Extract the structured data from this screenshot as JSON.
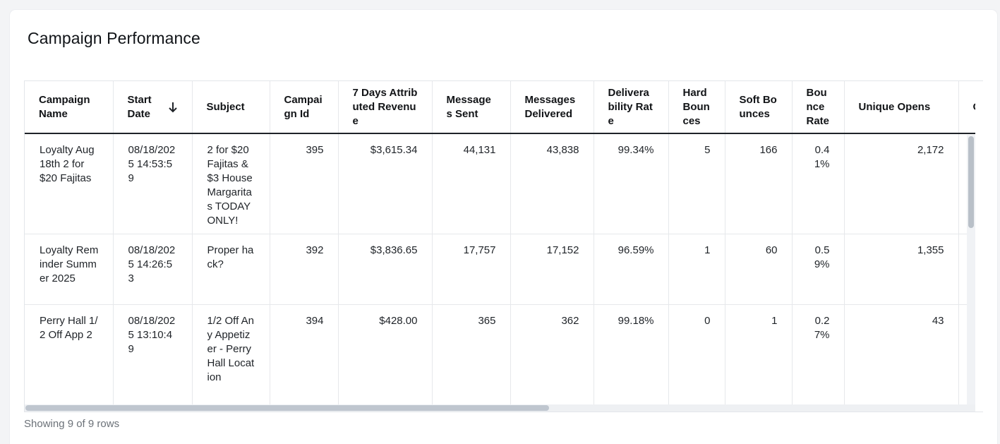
{
  "card": {
    "title": "Campaign Performance"
  },
  "table": {
    "columns": [
      {
        "label": "Campaign Name"
      },
      {
        "label": "Start Date"
      },
      {
        "label": "Subject"
      },
      {
        "label": "Campaign Id"
      },
      {
        "label": "7 Days Attributed Revenue"
      },
      {
        "label": "Messages Sent"
      },
      {
        "label": "Messages Delivered"
      },
      {
        "label": "Deliverability Rate"
      },
      {
        "label": "Hard Bounces"
      },
      {
        "label": "Soft Bounces"
      },
      {
        "label": "Bounce Rate"
      },
      {
        "label": "Unique Opens"
      },
      {
        "label": "Op"
      }
    ],
    "sort_icon": "arrow-down-icon",
    "rows": [
      {
        "campaign_name": "Loyalty Aug 18th 2 for $20 Fajitas",
        "start_date": "08/18/2025 14:53:59",
        "subject": "2 for $20 Fajitas & $3 House Margaritas TODAY ONLY!",
        "campaign_id": "395",
        "revenue": "$3,615.34",
        "sent": "44,131",
        "delivered": "43,838",
        "deliverability": "99.34%",
        "hard_bounces": "5",
        "soft_bounces": "166",
        "bounce_rate": "0.41%",
        "unique_opens": "2,172"
      },
      {
        "campaign_name": "Loyalty Reminder Summer 2025",
        "start_date": "08/18/2025 14:26:53",
        "subject": "Proper hack?",
        "campaign_id": "392",
        "revenue": "$3,836.65",
        "sent": "17,757",
        "delivered": "17,152",
        "deliverability": "96.59%",
        "hard_bounces": "1",
        "soft_bounces": "60",
        "bounce_rate": "0.59%",
        "unique_opens": "1,355"
      },
      {
        "campaign_name": "Perry Hall 1/2 Off App 2",
        "start_date": "08/18/2025 13:10:49",
        "subject": "1/2 Off Any Appetizer - Perry Hall Location",
        "campaign_id": "394",
        "revenue": "$428.00",
        "sent": "365",
        "delivered": "362",
        "deliverability": "99.18%",
        "hard_bounces": "0",
        "soft_bounces": "1",
        "bounce_rate": "0.27%",
        "unique_opens": "43"
      }
    ]
  },
  "footer": {
    "text": "Showing 9 of 9 rows"
  }
}
